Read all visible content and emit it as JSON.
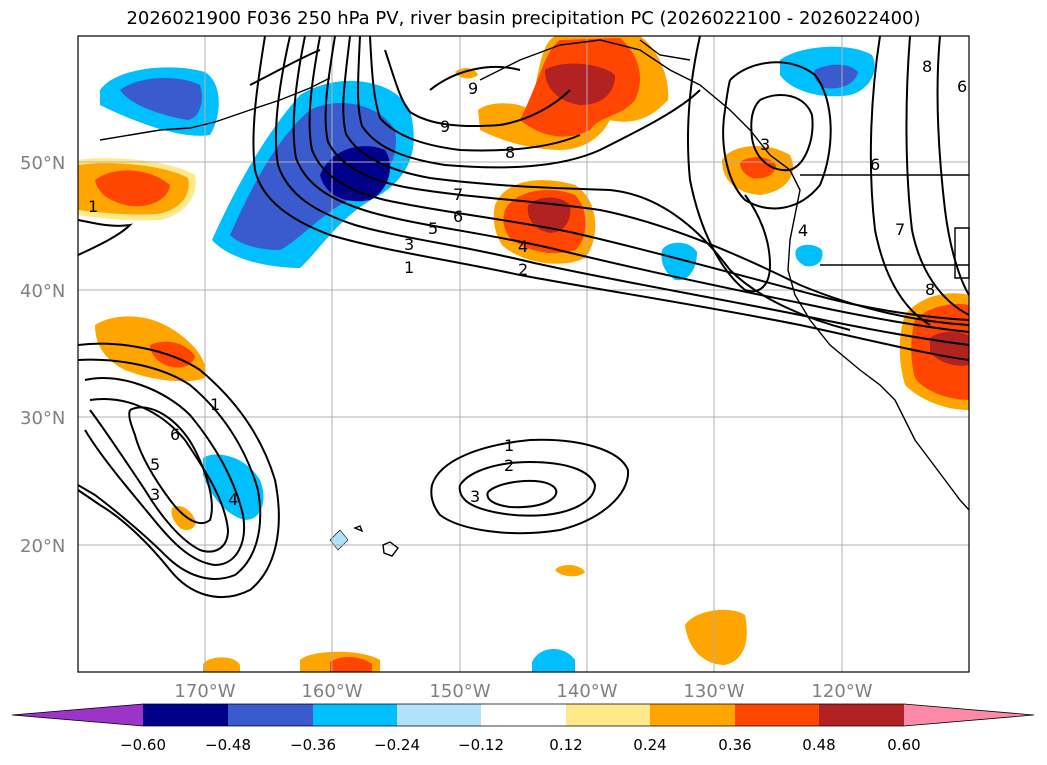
{
  "title": "2026021900 F036 250 hPa PV, river basin precipitation PC (2026022100 - 2026022400)",
  "lat_labels": [
    "50°N",
    "40°N",
    "30°N",
    "20°N"
  ],
  "lon_labels": [
    "170°W",
    "160°W",
    "150°W",
    "140°W",
    "130°W",
    "120°W"
  ],
  "colorbar": {
    "ticks": [
      "−0.60",
      "−0.48",
      "−0.36",
      "−0.24",
      "−0.12",
      "0.12",
      "0.24",
      "0.36",
      "0.48",
      "0.60"
    ],
    "colors": [
      "#9b35c9",
      "#00008b",
      "#3a5bcd",
      "#00bfff",
      "#b0e2fa",
      "#ffffff",
      "#ffe98a",
      "#ffa500",
      "#ff4500",
      "#b22222",
      "#ff89a8"
    ]
  },
  "contour_labels": [
    "1",
    "2",
    "3",
    "4",
    "5",
    "6",
    "7",
    "8",
    "9"
  ],
  "colors": {
    "land_coast": "#000000",
    "grid": "#b0b0b0",
    "axis_text": "#808080"
  }
}
